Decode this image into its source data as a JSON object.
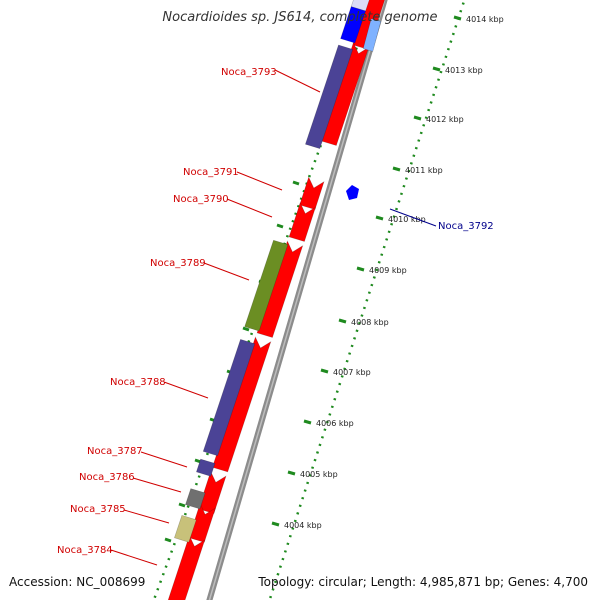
{
  "header": {
    "title": "Nocardioides sp. JS614, complete genome"
  },
  "footer": {
    "accession": "Accession: NC_008699",
    "topology": "Topology: circular; Length: 4,985,871 bp; Genes: 4,700"
  },
  "colors": {
    "backbone": "#8c8c8c",
    "forward_cds": "#ff0000",
    "reverse_cds": "#4b4396",
    "reverse_cds_green": "#6b8e23",
    "reverse_cds_gray": "#707070",
    "reverse_cds_khaki": "#c8c17a",
    "highlight_blue": "#0000ff",
    "tick_green": "#1f8a1f",
    "label_red": "#d00000",
    "label_blue": "#00008b"
  },
  "scale_labels": [
    "4014 kbp",
    "4013 kbp",
    "4012 kbp",
    "4011 kbp",
    "4010 kbp",
    "4009 kbp",
    "4008 kbp",
    "4007 kbp",
    "4006 kbp",
    "4005 kbp",
    "4004 kbp"
  ],
  "gene_labels": [
    "Noca_3793",
    "Noca_3791",
    "Noca_3790",
    "Noca_3792",
    "Noca_3789",
    "Noca_3788",
    "Noca_3787",
    "Noca_3786",
    "Noca_3785",
    "Noca_3784"
  ]
}
